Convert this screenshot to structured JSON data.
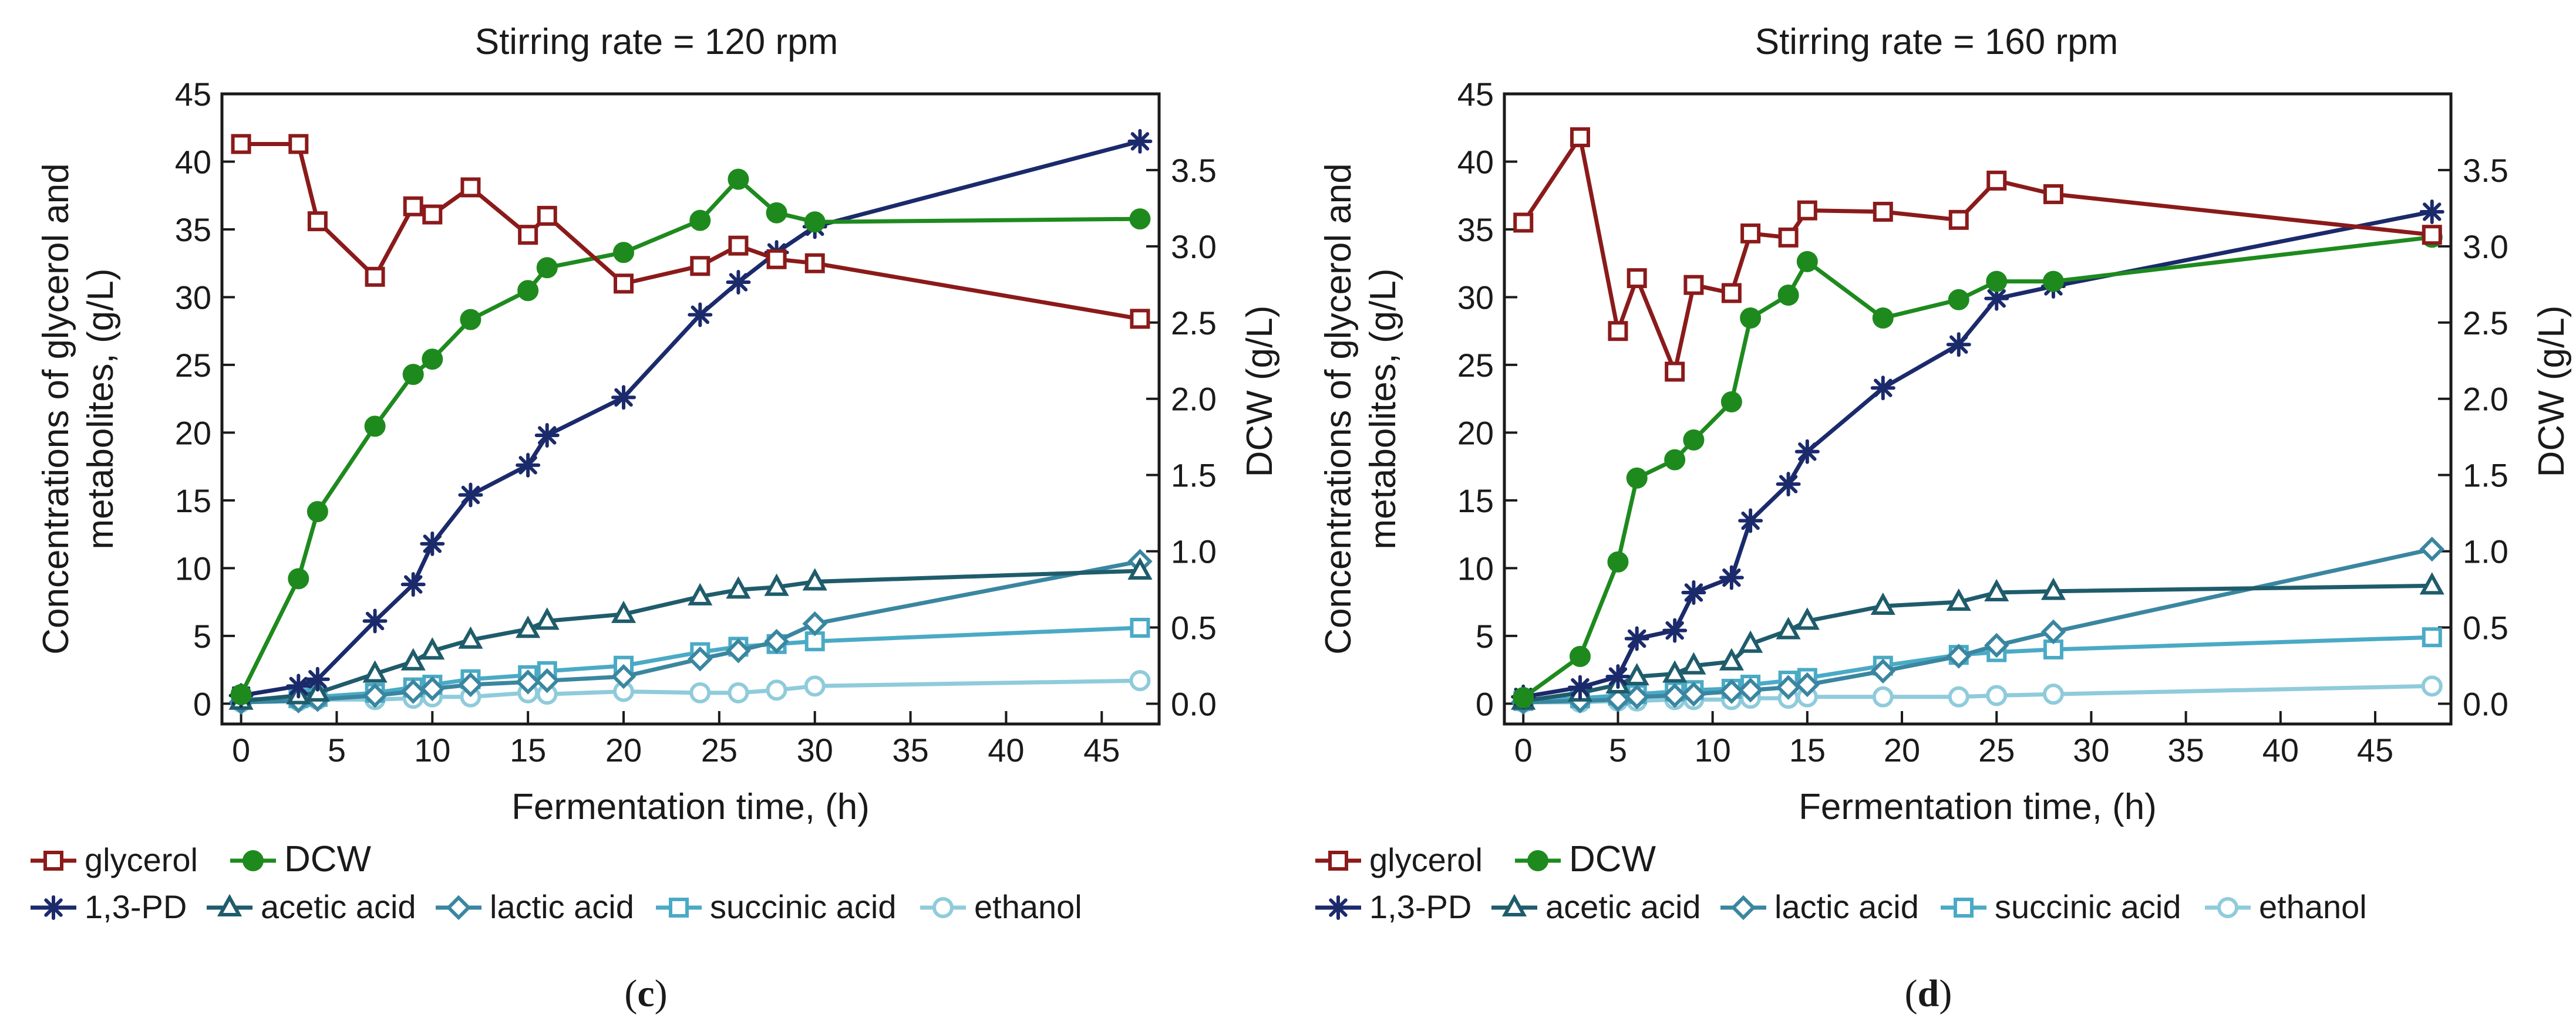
{
  "colors": {
    "glycerol": "#8b1a1a",
    "DCW": "#1e8a1e",
    "1,3-PD": "#1b2a6b",
    "acetic acid": "#1f5c6b",
    "lactic acid": "#3a86a0",
    "succinic acid": "#4aaac6",
    "ethanol": "#8fcbdb"
  },
  "panels": [
    {
      "label": "(c)",
      "panel_letter": "c",
      "legend_row1": [
        "glycerol",
        "DCW"
      ],
      "legend_row2": [
        "1,3-PD",
        "acetic acid",
        "lactic acid",
        "succinic acid",
        "ethanol"
      ]
    },
    {
      "label": "(d)",
      "panel_letter": "d",
      "legend_row1": [
        "glycerol",
        "DCW"
      ],
      "legend_row2": [
        "1,3-PD",
        "acetic acid",
        "lactic acid",
        "succinic acid",
        "ethanol"
      ]
    }
  ],
  "chart_data": [
    {
      "type": "line",
      "title": "Stirring rate = 120 rpm",
      "xlabel": "Fermentation time, (h)",
      "ylabel": "Concentrations of glycerol and metabolites, (g/L)",
      "ylabel_lines": [
        "Concentrations of glycerol and",
        "metabolites, (g/L)"
      ],
      "y2label": "DCW (g/L)",
      "xlim": [
        -1,
        48
      ],
      "ylim": [
        -1.5,
        45
      ],
      "y2lim": [
        -0.133,
        4.0
      ],
      "xticks": [
        "0",
        "5",
        "10",
        "15",
        "20",
        "25",
        "30",
        "35",
        "40",
        "45"
      ],
      "yticks": [
        "0",
        "5",
        "10",
        "15",
        "20",
        "25",
        "30",
        "35",
        "40",
        "45"
      ],
      "y2ticks": [
        "0.0",
        "0.5",
        "1.0",
        "1.5",
        "2.0",
        "2.5",
        "3.0",
        "3.5"
      ],
      "series": [
        {
          "name": "glycerol",
          "axis": "left",
          "marker": "square",
          "x": [
            0,
            3,
            4,
            7,
            9,
            10,
            12,
            15,
            16,
            20,
            24,
            26,
            28,
            30,
            47
          ],
          "y": [
            41.3,
            41.3,
            35.6,
            31.5,
            36.7,
            36.1,
            38.1,
            34.6,
            36.0,
            31.0,
            32.3,
            33.8,
            32.8,
            32.5,
            28.4
          ]
        },
        {
          "name": "DCW",
          "axis": "right",
          "marker": "circle",
          "x": [
            0,
            3,
            4,
            7,
            9,
            10,
            12,
            15,
            16,
            20,
            24,
            26,
            28,
            30,
            47
          ],
          "y": [
            0.06,
            0.82,
            1.26,
            1.82,
            2.16,
            2.26,
            2.52,
            2.71,
            2.86,
            2.96,
            3.17,
            3.44,
            3.22,
            3.16,
            3.18
          ]
        },
        {
          "name": "1,3-PD",
          "axis": "left",
          "marker": "asterisk",
          "x": [
            0,
            3,
            4,
            7,
            9,
            10,
            12,
            15,
            16,
            20,
            24,
            26,
            28,
            30,
            47
          ],
          "y": [
            0.6,
            1.3,
            1.8,
            6.1,
            8.8,
            11.8,
            15.4,
            17.6,
            19.8,
            22.6,
            28.7,
            31.1,
            33.3,
            35.2,
            41.5
          ]
        },
        {
          "name": "acetic acid",
          "axis": "left",
          "marker": "triangle",
          "x": [
            0,
            3,
            4,
            7,
            9,
            10,
            12,
            15,
            16,
            20,
            24,
            26,
            28,
            30,
            47
          ],
          "y": [
            0.2,
            0.6,
            0.8,
            2.2,
            3.1,
            3.9,
            4.7,
            5.5,
            6.1,
            6.6,
            7.9,
            8.4,
            8.6,
            9.0,
            9.8
          ]
        },
        {
          "name": "lactic acid",
          "axis": "left",
          "marker": "diamond",
          "x": [
            0,
            3,
            4,
            7,
            9,
            10,
            12,
            15,
            16,
            20,
            24,
            26,
            28,
            30,
            47
          ],
          "y": [
            0.1,
            0.2,
            0.3,
            0.6,
            0.9,
            1.1,
            1.4,
            1.6,
            1.7,
            2.0,
            3.3,
            3.9,
            4.6,
            5.9,
            10.5
          ]
        },
        {
          "name": "succinic acid",
          "axis": "left",
          "marker": "square",
          "x": [
            0,
            3,
            4,
            7,
            9,
            10,
            12,
            15,
            16,
            20,
            24,
            26,
            28,
            30,
            47
          ],
          "y": [
            0.3,
            0.4,
            0.5,
            0.8,
            1.2,
            1.4,
            1.8,
            2.1,
            2.4,
            2.8,
            3.8,
            4.2,
            4.4,
            4.6,
            5.6
          ]
        },
        {
          "name": "ethanol",
          "axis": "left",
          "marker": "circle",
          "x": [
            0,
            3,
            4,
            7,
            9,
            10,
            12,
            15,
            16,
            20,
            24,
            26,
            28,
            30,
            47
          ],
          "y": [
            0.1,
            0.2,
            0.3,
            0.3,
            0.4,
            0.5,
            0.5,
            0.8,
            0.7,
            0.9,
            0.8,
            0.8,
            1.0,
            1.3,
            1.7
          ]
        }
      ]
    },
    {
      "type": "line",
      "title": "Stirring rate = 160 rpm",
      "xlabel": "Fermentation time, (h)",
      "ylabel": "Concentrations of glycerol and metabolites, (g/L)",
      "ylabel_lines": [
        "Concentrations of glycerol and",
        "metabolites, (g/L)"
      ],
      "y2label": "DCW (g/L)",
      "xlim": [
        -1,
        49
      ],
      "ylim": [
        -1.5,
        45
      ],
      "y2lim": [
        -0.133,
        4.0
      ],
      "xticks": [
        "0",
        "5",
        "10",
        "15",
        "20",
        "25",
        "30",
        "35",
        "40",
        "45"
      ],
      "yticks": [
        "0",
        "5",
        "10",
        "15",
        "20",
        "25",
        "30",
        "35",
        "40",
        "45"
      ],
      "y2ticks": [
        "0.0",
        "0.5",
        "1.0",
        "1.5",
        "2.0",
        "2.5",
        "3.0",
        "3.5"
      ],
      "series": [
        {
          "name": "glycerol",
          "axis": "left",
          "marker": "square",
          "x": [
            0,
            3,
            5,
            6,
            8,
            9,
            11,
            12,
            14,
            15,
            19,
            23,
            25,
            28,
            48
          ],
          "y": [
            35.5,
            41.8,
            27.5,
            31.4,
            24.5,
            30.9,
            30.3,
            34.7,
            34.4,
            36.4,
            36.3,
            35.7,
            38.6,
            37.6,
            34.6
          ]
        },
        {
          "name": "DCW",
          "axis": "right",
          "marker": "circle",
          "x": [
            0,
            3,
            5,
            6,
            8,
            9,
            11,
            12,
            14,
            15,
            19,
            23,
            25,
            28,
            48
          ],
          "y": [
            0.04,
            0.31,
            0.93,
            1.48,
            1.6,
            1.73,
            1.98,
            2.53,
            2.68,
            2.9,
            2.53,
            2.65,
            2.77,
            2.77,
            3.06
          ]
        },
        {
          "name": "1,3-PD",
          "axis": "left",
          "marker": "asterisk",
          "x": [
            0,
            3,
            5,
            6,
            8,
            9,
            11,
            12,
            14,
            15,
            19,
            23,
            25,
            28,
            48
          ],
          "y": [
            0.5,
            1.2,
            2.0,
            4.8,
            5.4,
            8.2,
            9.3,
            13.5,
            16.2,
            18.6,
            23.3,
            26.5,
            29.9,
            30.8,
            36.3
          ]
        },
        {
          "name": "acetic acid",
          "axis": "left",
          "marker": "triangle",
          "x": [
            0,
            3,
            5,
            6,
            8,
            9,
            11,
            12,
            14,
            15,
            19,
            23,
            25,
            28,
            48
          ],
          "y": [
            0.2,
            0.8,
            1.4,
            2.0,
            2.2,
            2.8,
            3.1,
            4.4,
            5.4,
            6.1,
            7.2,
            7.5,
            8.2,
            8.3,
            8.7
          ]
        },
        {
          "name": "lactic acid",
          "axis": "left",
          "marker": "diamond",
          "x": [
            0,
            3,
            5,
            6,
            8,
            9,
            11,
            12,
            14,
            15,
            19,
            23,
            25,
            28,
            48
          ],
          "y": [
            0.1,
            0.2,
            0.3,
            0.5,
            0.6,
            0.7,
            0.9,
            1.0,
            1.2,
            1.4,
            2.4,
            3.5,
            4.3,
            5.3,
            11.4
          ]
        },
        {
          "name": "succinic acid",
          "axis": "left",
          "marker": "square",
          "x": [
            0,
            3,
            5,
            6,
            8,
            9,
            11,
            12,
            14,
            15,
            19,
            23,
            25,
            28,
            48
          ],
          "y": [
            0.2,
            0.4,
            0.6,
            0.7,
            0.9,
            1.0,
            1.1,
            1.4,
            1.7,
            1.9,
            2.8,
            3.6,
            3.8,
            4.0,
            4.9
          ]
        },
        {
          "name": "ethanol",
          "axis": "left",
          "marker": "circle",
          "x": [
            0,
            3,
            5,
            6,
            8,
            9,
            11,
            12,
            14,
            15,
            19,
            23,
            25,
            28,
            48
          ],
          "y": [
            0.1,
            0.1,
            0.2,
            0.2,
            0.3,
            0.3,
            0.3,
            0.4,
            0.4,
            0.5,
            0.5,
            0.5,
            0.6,
            0.7,
            1.3
          ]
        }
      ]
    }
  ]
}
